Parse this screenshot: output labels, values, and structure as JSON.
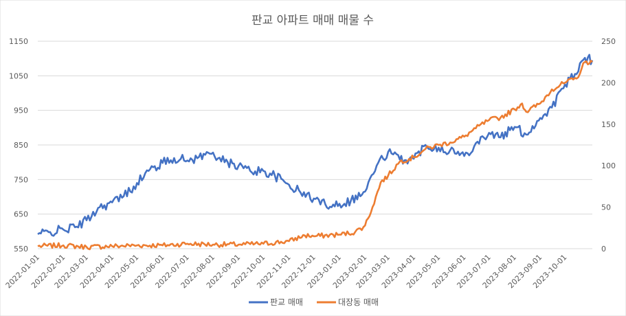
{
  "chart_data": {
    "type": "line",
    "title": "판교 아파트 매매 매물 수",
    "xlabel": "",
    "ylabel_left": "",
    "ylabel_right": "",
    "x_tick_labels": [
      "2022-01-01",
      "2022-02-01",
      "2022-03-01",
      "2022-04-01",
      "2022-05-01",
      "2022-06-01",
      "2022-07-01",
      "2022-08-01",
      "2022-09-01",
      "2022-10-01",
      "2022-11-01",
      "2022-12-01",
      "2023-01-01",
      "2023-02-01",
      "2023-03-01",
      "2023-04-01",
      "2023-05-01",
      "2023-06-01",
      "2023-07-01",
      "2023-08-01",
      "2023-09-01",
      "2023-10-01"
    ],
    "x_range": [
      "2022-01-01",
      "2023-11-03"
    ],
    "left_axis": {
      "min": 550,
      "max": 1150,
      "ticks": [
        550,
        650,
        750,
        850,
        950,
        1050,
        1150
      ],
      "tick_labels": [
        "550",
        "650",
        "750",
        "850",
        "950",
        "1050",
        "1150"
      ]
    },
    "right_axis": {
      "min": 0,
      "max": 250,
      "ticks": [
        0,
        50,
        100,
        150,
        200,
        250
      ],
      "tick_labels": [
        "0",
        "50",
        "100",
        "150",
        "200",
        "250"
      ]
    },
    "grid": true,
    "legend_position": "bottom",
    "series": [
      {
        "name": "판교 매매",
        "axis": "left",
        "color": "#4472c4",
        "points": [
          [
            "2022-01-01",
            592
          ],
          [
            "2022-01-16",
            598
          ],
          [
            "2022-02-01",
            605
          ],
          [
            "2022-02-15",
            612
          ],
          [
            "2022-03-01",
            632
          ],
          [
            "2022-03-15",
            668
          ],
          [
            "2022-04-01",
            684
          ],
          [
            "2022-04-15",
            702
          ],
          [
            "2022-05-01",
            740
          ],
          [
            "2022-05-15",
            775
          ],
          [
            "2022-06-01",
            798
          ],
          [
            "2022-06-15",
            812
          ],
          [
            "2022-07-01",
            805
          ],
          [
            "2022-07-15",
            815
          ],
          [
            "2022-08-01",
            828
          ],
          [
            "2022-08-15",
            800
          ],
          [
            "2022-09-01",
            790
          ],
          [
            "2022-09-15",
            775
          ],
          [
            "2022-10-01",
            775
          ],
          [
            "2022-10-15",
            760
          ],
          [
            "2022-11-01",
            735
          ],
          [
            "2022-11-15",
            712
          ],
          [
            "2022-12-01",
            695
          ],
          [
            "2022-12-15",
            678
          ],
          [
            "2023-01-01",
            680
          ],
          [
            "2023-01-15",
            690
          ],
          [
            "2023-02-01",
            715
          ],
          [
            "2023-02-15",
            790
          ],
          [
            "2023-03-01",
            830
          ],
          [
            "2023-03-15",
            808
          ],
          [
            "2023-04-01",
            810
          ],
          [
            "2023-04-15",
            850
          ],
          [
            "2023-05-01",
            842
          ],
          [
            "2023-05-15",
            835
          ],
          [
            "2023-06-01",
            818
          ],
          [
            "2023-06-15",
            855
          ],
          [
            "2023-07-01",
            885
          ],
          [
            "2023-07-15",
            872
          ],
          [
            "2023-08-01",
            902
          ],
          [
            "2023-08-15",
            880
          ],
          [
            "2023-09-01",
            928
          ],
          [
            "2023-09-15",
            958
          ],
          [
            "2023-10-01",
            1025
          ],
          [
            "2023-10-15",
            1055
          ],
          [
            "2023-10-25",
            1102
          ],
          [
            "2023-11-03",
            1095
          ]
        ]
      },
      {
        "name": "대장동 매매",
        "axis": "right",
        "color": "#ed7d31",
        "points": [
          [
            "2022-01-01",
            3
          ],
          [
            "2022-02-01",
            4
          ],
          [
            "2022-03-01",
            2
          ],
          [
            "2022-04-01",
            3
          ],
          [
            "2022-05-01",
            4
          ],
          [
            "2022-06-01",
            4
          ],
          [
            "2022-07-01",
            6
          ],
          [
            "2022-08-01",
            5
          ],
          [
            "2022-09-01",
            5
          ],
          [
            "2022-10-01",
            6
          ],
          [
            "2022-11-01",
            9
          ],
          [
            "2022-11-20",
            16
          ],
          [
            "2022-12-01",
            15
          ],
          [
            "2023-01-01",
            17
          ],
          [
            "2023-01-20",
            20
          ],
          [
            "2023-02-01",
            28
          ],
          [
            "2023-02-10",
            50
          ],
          [
            "2023-02-20",
            80
          ],
          [
            "2023-03-01",
            88
          ],
          [
            "2023-03-15",
            105
          ],
          [
            "2023-04-01",
            110
          ],
          [
            "2023-04-15",
            120
          ],
          [
            "2023-05-01",
            125
          ],
          [
            "2023-05-15",
            128
          ],
          [
            "2023-06-01",
            135
          ],
          [
            "2023-06-15",
            145
          ],
          [
            "2023-07-01",
            155
          ],
          [
            "2023-07-15",
            158
          ],
          [
            "2023-08-01",
            168
          ],
          [
            "2023-08-10",
            175
          ],
          [
            "2023-08-15",
            165
          ],
          [
            "2023-09-01",
            175
          ],
          [
            "2023-09-15",
            192
          ],
          [
            "2023-10-01",
            200
          ],
          [
            "2023-10-15",
            205
          ],
          [
            "2023-10-25",
            225
          ],
          [
            "2023-11-03",
            225
          ]
        ]
      }
    ]
  }
}
